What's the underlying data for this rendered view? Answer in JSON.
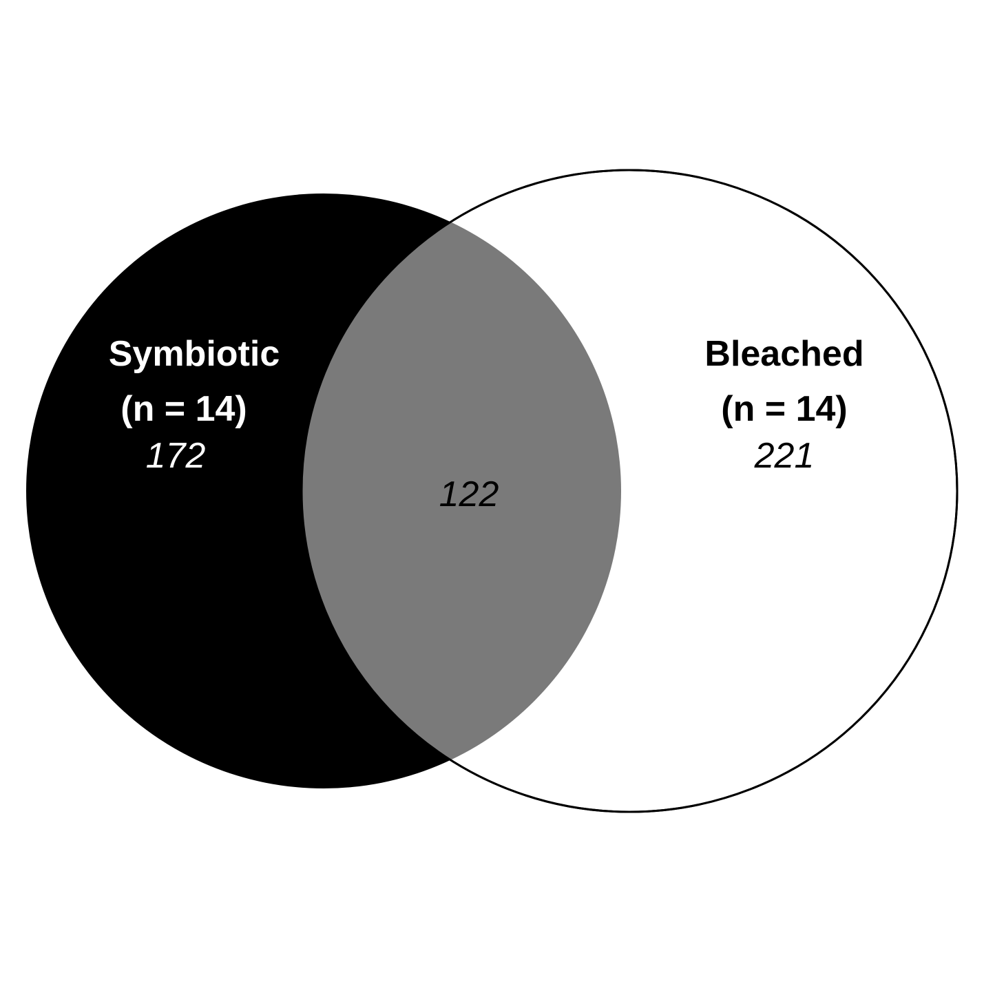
{
  "sets": [
    {
      "name": "Symbiotic",
      "n_label": "(n = 14)",
      "unique_count": "172",
      "fill": "#000000",
      "text_color": "#ffffff"
    },
    {
      "name": "Bleached",
      "n_label": "(n = 14)",
      "unique_count": "221",
      "fill": "#ffffff",
      "text_color": "#000000"
    }
  ],
  "intersection": {
    "count": "122",
    "fill": "#7a7a7a",
    "text_color": "#000000"
  }
}
